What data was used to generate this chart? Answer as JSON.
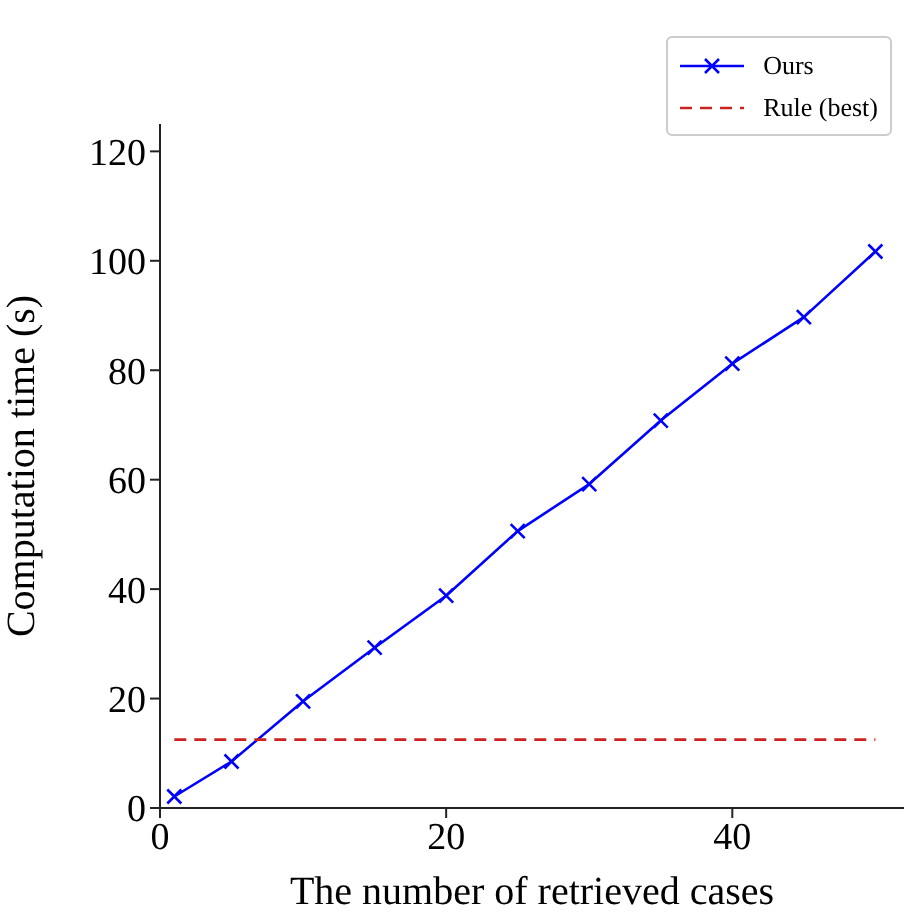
{
  "chart_data": {
    "type": "line",
    "xlabel": "The number of retrieved cases",
    "ylabel": "Computation time (s)",
    "xlim": [
      0,
      52
    ],
    "xticks": [
      0,
      20,
      40
    ],
    "ylim": [
      0,
      125
    ],
    "yticks": [
      0,
      20,
      40,
      60,
      80,
      100,
      120
    ],
    "grid": false,
    "legend": "top right",
    "series": [
      {
        "name": "Ours",
        "color": "#0000ff",
        "marker": "cross",
        "line_style": "solid",
        "x": [
          1,
          5,
          10,
          15,
          20,
          25,
          30,
          35,
          40,
          45,
          50
        ],
        "values": [
          2.1,
          8.5,
          19.5,
          29.3,
          38.8,
          50.6,
          59.2,
          70.8,
          81.2,
          89.7,
          101.7
        ]
      },
      {
        "name": "Rule (best)",
        "color": "#cc2222",
        "marker": "none",
        "line_style": "dashed",
        "x": [
          1,
          50
        ],
        "values": [
          12.5,
          12.5
        ]
      }
    ]
  }
}
